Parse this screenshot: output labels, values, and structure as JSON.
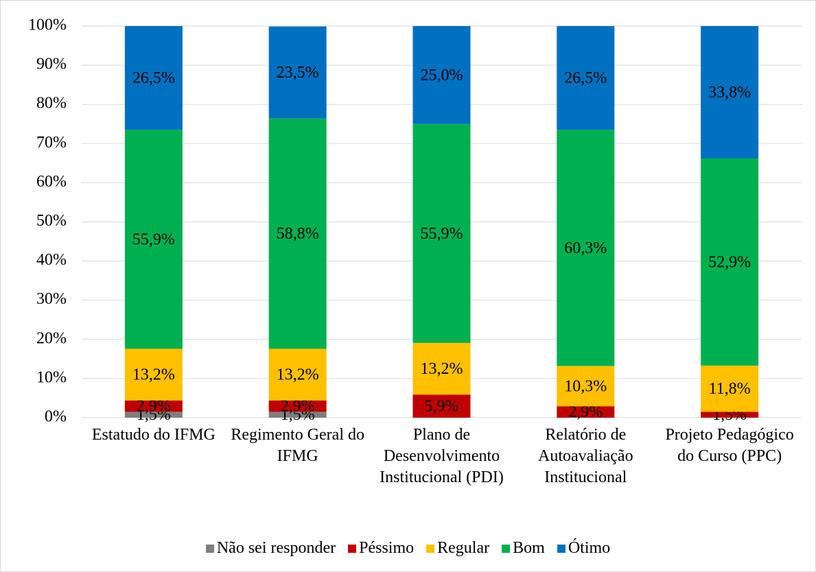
{
  "chart_data": {
    "type": "stacked_bar",
    "categories": [
      "Estatudo do IFMG",
      "Regimento Geral do IFMG",
      "Plano de Desenvolvimento Institucional (PDI)",
      "Relatório de Autoavaliação Institucional",
      "Projeto Pedagógico do Curso (PPC)"
    ],
    "series": [
      {
        "name": "Não sei responder",
        "color": "#7f7f7f",
        "values": [
          1.5,
          1.5,
          0,
          0,
          0
        ],
        "value_labels": [
          "1,5%",
          "1,5%",
          null,
          null,
          null
        ]
      },
      {
        "name": "Péssimo",
        "color": "#c00000",
        "values": [
          2.9,
          2.9,
          5.9,
          2.9,
          1.5
        ],
        "value_labels": [
          "2,9%",
          "2,9%",
          "5,9%",
          "2,9%",
          "1,5%"
        ]
      },
      {
        "name": "Regular",
        "color": "#ffc000",
        "values": [
          13.2,
          13.2,
          13.2,
          10.3,
          11.8
        ],
        "value_labels": [
          "13,2%",
          "13,2%",
          "13,2%",
          "10,3%",
          "11,8%"
        ]
      },
      {
        "name": "Bom",
        "color": "#00b050",
        "values": [
          55.9,
          58.8,
          55.9,
          60.3,
          52.9
        ],
        "value_labels": [
          "55,9%",
          "58,8%",
          "55,9%",
          "60,3%",
          "52,9%"
        ]
      },
      {
        "name": "Ótimo",
        "color": "#0070c0",
        "values": [
          26.5,
          23.5,
          25.0,
          26.5,
          33.8
        ],
        "value_labels": [
          "26,5%",
          "23,5%",
          "25,0%",
          "26,5%",
          "33,8%"
        ]
      }
    ],
    "ylim": [
      0,
      100
    ],
    "yticks": [
      {
        "value": 0,
        "label": "0%"
      },
      {
        "value": 10,
        "label": "10%"
      },
      {
        "value": 20,
        "label": "20%"
      },
      {
        "value": 30,
        "label": "30%"
      },
      {
        "value": 40,
        "label": "40%"
      },
      {
        "value": 50,
        "label": "50%"
      },
      {
        "value": 60,
        "label": "60%"
      },
      {
        "value": 70,
        "label": "70%"
      },
      {
        "value": 80,
        "label": "80%"
      },
      {
        "value": 90,
        "label": "90%"
      },
      {
        "value": 100,
        "label": "100%"
      }
    ],
    "grid": true,
    "legend": "bottom"
  }
}
